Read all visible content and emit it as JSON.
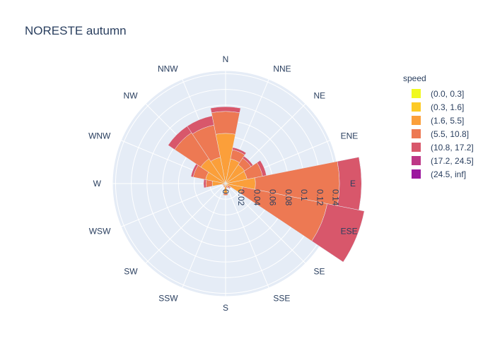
{
  "chart_data": {
    "type": "barpolar",
    "title": "NORESTE autumn",
    "legend_title": "speed",
    "legend_position": "top-right",
    "directions": [
      "N",
      "NNE",
      "NE",
      "ENE",
      "E",
      "ESE",
      "SE",
      "SSE",
      "S",
      "SSW",
      "SW",
      "WSW",
      "W",
      "WNW",
      "NW",
      "NNW"
    ],
    "radial_axis": {
      "range": [
        0,
        0.144
      ],
      "ticks": [
        0,
        0.02,
        0.04,
        0.06,
        0.08,
        0.1,
        0.12,
        0.14
      ],
      "tick_labels": [
        "0",
        "0.02",
        "0.04",
        "0.06",
        "0.08",
        "0.1",
        "0.12",
        "0.14"
      ]
    },
    "grid": true,
    "series": [
      {
        "name": "(0.0, 0.3]",
        "color": "#f0f921",
        "values": [
          0,
          0,
          0,
          0,
          0,
          0,
          0,
          0,
          0,
          0,
          0,
          0,
          0,
          0,
          0,
          0
        ]
      },
      {
        "name": "(0.3, 1.6]",
        "color": "#fdca26",
        "values": [
          0.002,
          0.002,
          0.002,
          0.002,
          0.002,
          0.002,
          0.001,
          0.001,
          0.001,
          0.001,
          0.001,
          0.001,
          0.001,
          0.001,
          0.002,
          0.002
        ]
      },
      {
        "name": "(1.6, 5.5]",
        "color": "#fb9f3a",
        "values": [
          0.062,
          0.03,
          0.027,
          0.026,
          0.036,
          0.02,
          0.003,
          0.002,
          0.012,
          0.003,
          0.002,
          0.002,
          0.016,
          0.025,
          0.036,
          0.032
        ]
      },
      {
        "name": "(5.5, 10.8]",
        "color": "#ed7953",
        "values": [
          0.028,
          0.012,
          0.01,
          0.02,
          0.107,
          0.11,
          0.003,
          0.002,
          0.002,
          0.001,
          0.001,
          0.001,
          0.008,
          0.016,
          0.04,
          0.042
        ]
      },
      {
        "name": "(10.8, 17.2]",
        "color": "#d8576b",
        "values": [
          0.006,
          0.003,
          0.003,
          0.005,
          0.028,
          0.048,
          0.001,
          0.001,
          0.0,
          0.0,
          0.0,
          0.0,
          0.003,
          0.003,
          0.01,
          0.012
        ]
      },
      {
        "name": "(17.2, 24.5]",
        "color": "#bd3786",
        "values": [
          0,
          0,
          0,
          0,
          0,
          0,
          0,
          0,
          0,
          0,
          0,
          0,
          0,
          0,
          0,
          0
        ]
      },
      {
        "name": "(24.5, inf]",
        "color": "#9c179e",
        "values": [
          0,
          0,
          0,
          0,
          0,
          0,
          0,
          0,
          0,
          0,
          0,
          0,
          0,
          0,
          0,
          0
        ]
      }
    ],
    "colors": {
      "polar_background": "#e5ecf6",
      "grid": "#ffffff",
      "text": "#2a3f5f"
    }
  }
}
